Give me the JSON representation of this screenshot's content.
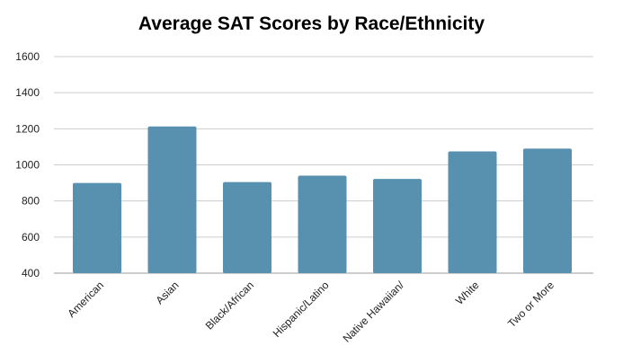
{
  "chart_data": {
    "type": "bar",
    "title": "Average SAT Scores by Race/Ethnicity",
    "categories": [
      "American",
      "Asian",
      "Black/African",
      "Hispanic/Latino",
      "Native Hawaiian/",
      "White",
      "Two or More"
    ],
    "values": [
      900,
      1213,
      905,
      940,
      922,
      1075,
      1090
    ],
    "xlabel": "",
    "ylabel": "",
    "ylim": [
      400,
      1600
    ],
    "yticks": [
      400,
      600,
      800,
      1000,
      1200,
      1400,
      1600
    ],
    "grid": true,
    "bar_color": "#5891AF"
  }
}
